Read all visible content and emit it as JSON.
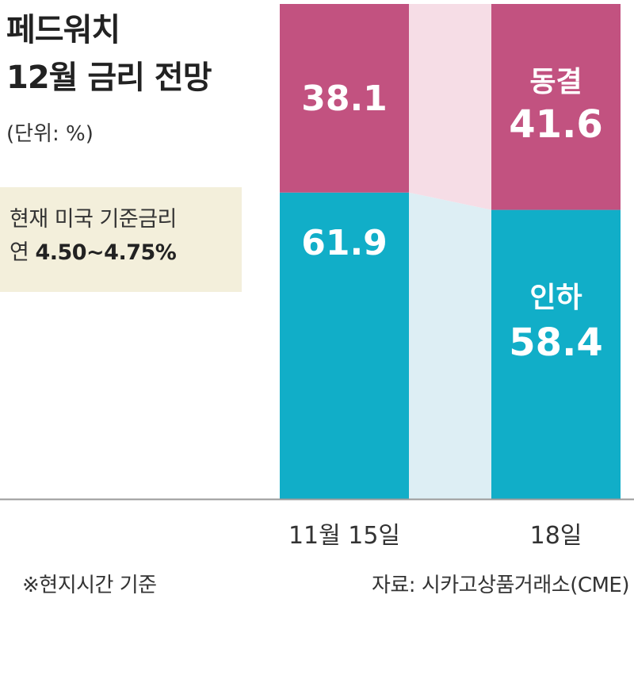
{
  "title_line1": "페드워치",
  "title_line2": "12월 금리 전망",
  "unit": "(단위: %)",
  "info": {
    "line1": "현재 미국 기준금리",
    "line2_prefix": "연",
    "line2_rate": "4.50~4.75%"
  },
  "footnote": "※현지시간 기준",
  "source": "자료: 시카고상품거래소(CME)",
  "colors": {
    "hold": "#c25280",
    "cut": "#11aec8",
    "hold_connector": "#f6dde6",
    "cut_connector": "#ddeef4"
  },
  "chart_data": {
    "type": "bar",
    "stacked": true,
    "categories": [
      "11월 15일",
      "18일"
    ],
    "ylim": [
      0,
      100
    ],
    "series": [
      {
        "name": "인하",
        "values": [
          61.9,
          58.4
        ],
        "color": "#11aec8"
      },
      {
        "name": "동결",
        "values": [
          38.1,
          41.6
        ],
        "color": "#c25280"
      }
    ],
    "value_labels": [
      "38.1",
      "41.6",
      "61.9",
      "58.4"
    ]
  }
}
